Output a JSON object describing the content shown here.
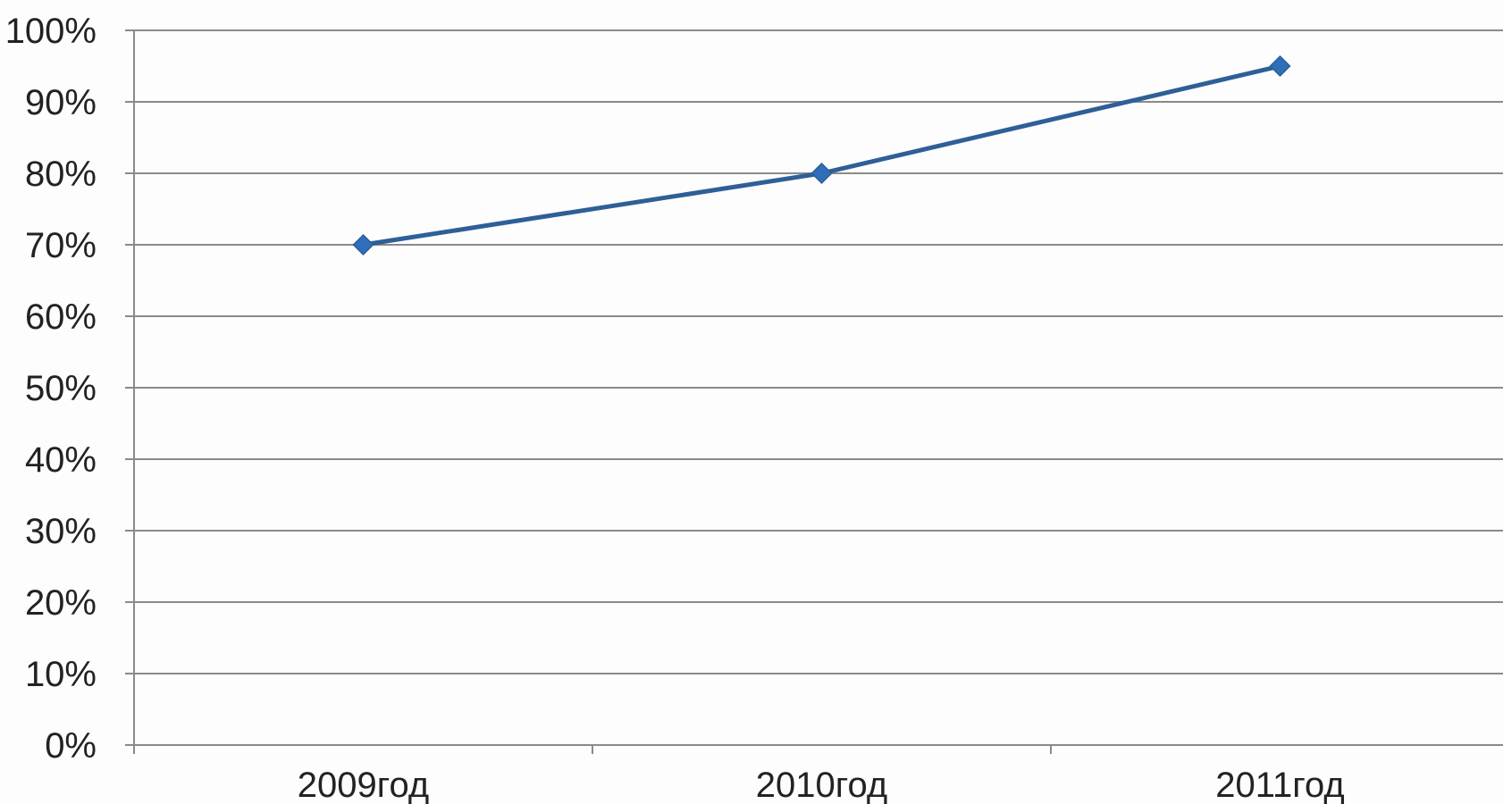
{
  "chart_data": {
    "type": "line",
    "categories": [
      "2009год",
      "2010год",
      "2011год"
    ],
    "series": [
      {
        "values": [
          70,
          80,
          95
        ]
      }
    ],
    "y_ticks": [
      "0%",
      "10%",
      "20%",
      "30%",
      "40%",
      "50%",
      "60%",
      "70%",
      "80%",
      "90%",
      "100%"
    ],
    "ylim": [
      0,
      100
    ],
    "grid": true,
    "legend": "none",
    "colors": {
      "series": "#2e5f97",
      "marker": "#2f6eb8",
      "grid": "#8a8a8a"
    }
  }
}
